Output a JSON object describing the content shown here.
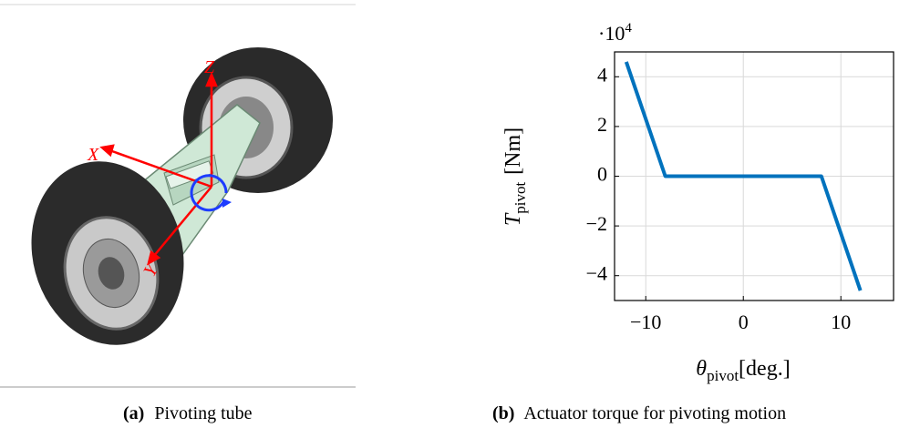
{
  "subfigures": [
    {
      "label": "(a)",
      "caption": "Pivoting tube",
      "axis_names": [
        "X",
        "Y",
        "Z"
      ]
    },
    {
      "label": "(b)",
      "caption": "Actuator torque for pivoting motion"
    }
  ],
  "chart_data": {
    "type": "line",
    "x_label": {
      "symbol": "θ",
      "subscript": "pivot",
      "unit": "[deg.]"
    },
    "y_label": {
      "symbol": "T",
      "subscript": "pivot",
      "unit": "[Nm]"
    },
    "y_multiplier": {
      "base": "·10",
      "exponent": "4"
    },
    "x": [
      -12,
      -8,
      8,
      12
    ],
    "series": [
      {
        "color": "#0072bd",
        "values": [
          4.6,
          0,
          0,
          -4.6
        ]
      }
    ],
    "xlim": [
      -13.2,
      15.4
    ],
    "ylim": [
      -5,
      5
    ],
    "xticks": [
      {
        "value": -10,
        "label": "−10"
      },
      0,
      10
    ],
    "yticks": [
      {
        "value": -4,
        "label": "−4"
      },
      {
        "value": -2,
        "label": "−2"
      },
      0,
      2,
      4
    ],
    "grid": true
  }
}
